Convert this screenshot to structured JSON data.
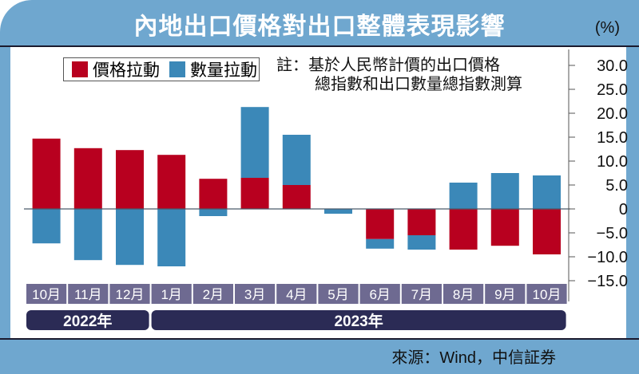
{
  "title": "內地出口價格對出口整體表現影響",
  "unit": "(%)",
  "note": {
    "line1": "註：基於人民幣計價的出口價格",
    "line2": "總指數和出口數量總指數測算"
  },
  "source": "來源：Wind，中信証券",
  "colors": {
    "price": "#b8001f",
    "volume": "#3b88b8",
    "frame": "#6fa7cf",
    "month_box": "#6e6a91",
    "year_box": "#2b2b55"
  },
  "chart_data": {
    "type": "bar",
    "stacked": true,
    "categories": [
      "10月",
      "11月",
      "12月",
      "1月",
      "2月",
      "3月",
      "4月",
      "5月",
      "6月",
      "7月",
      "8月",
      "9月",
      "10月"
    ],
    "year_groups": [
      {
        "label": "2022年",
        "span": 3
      },
      {
        "label": "2023年",
        "span": 10
      }
    ],
    "series": [
      {
        "name": "價格拉動",
        "values": [
          14.7,
          12.7,
          12.3,
          11.3,
          6.3,
          6.5,
          5.0,
          0,
          -6.3,
          -5.5,
          -8.5,
          -7.7,
          -9.5
        ]
      },
      {
        "name": "數量拉動",
        "values": [
          -7.2,
          -10.7,
          -11.7,
          -12.0,
          -1.5,
          14.8,
          10.5,
          -1.0,
          -2.0,
          -3.0,
          5.5,
          7.5,
          7.0
        ]
      }
    ],
    "ylim": [
      -15,
      30
    ],
    "yticks": [
      "30.0",
      "25.0",
      "20.0",
      "15.0",
      "10.0",
      "5.0",
      "0",
      "−5.0",
      "−10.0",
      "−15.0"
    ],
    "ytick_values": [
      30,
      25,
      20,
      15,
      10,
      5,
      0,
      -5,
      -10,
      -15
    ],
    "legend": "top-left"
  }
}
